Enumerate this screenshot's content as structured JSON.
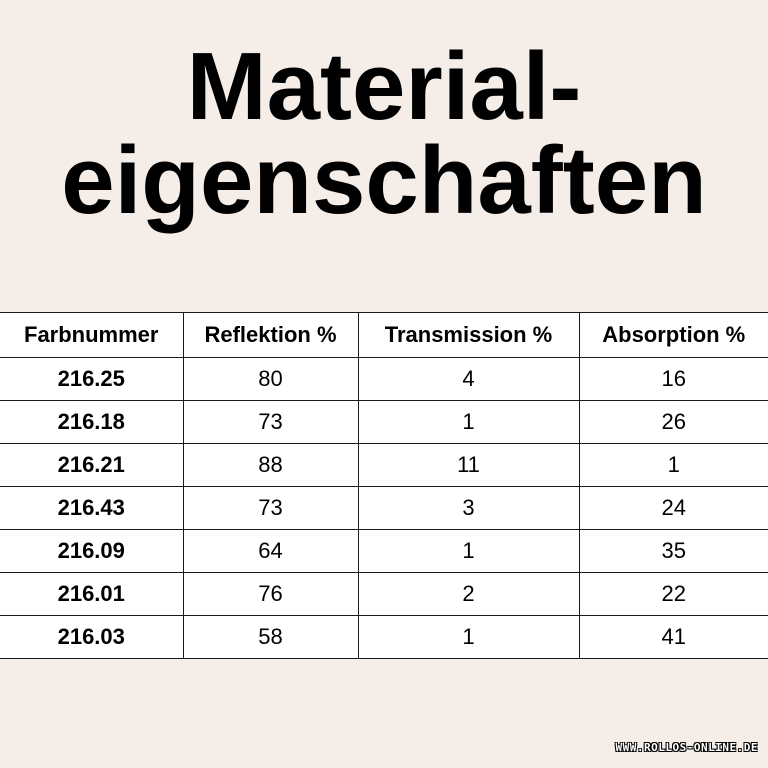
{
  "title": {
    "line1": "Material-",
    "line2": "eigenschaften"
  },
  "table": {
    "headers": [
      "Farbnummer",
      "Reflektion %",
      "Transmission %",
      "Absorption %"
    ],
    "rows": [
      [
        "216.25",
        "80",
        "4",
        "16"
      ],
      [
        "216.18",
        "73",
        "1",
        "26"
      ],
      [
        "216.21",
        "88",
        "11",
        "1"
      ],
      [
        "216.43",
        "73",
        "3",
        "24"
      ],
      [
        "216.09",
        "64",
        "1",
        "35"
      ],
      [
        "216.01",
        "76",
        "2",
        "22"
      ],
      [
        "216.03",
        "58",
        "1",
        "41"
      ]
    ]
  },
  "watermark": "WWW.ROLLOS-ONLINE.DE",
  "colors": {
    "background": "#f5ede8",
    "table_background": "#ffffff",
    "text": "#000000"
  }
}
